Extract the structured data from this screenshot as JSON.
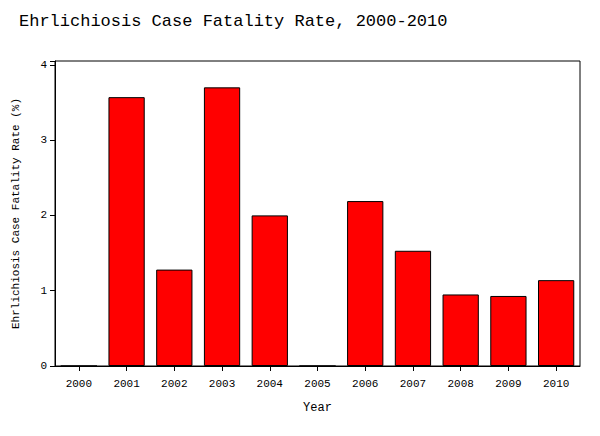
{
  "chart_data": {
    "type": "bar",
    "title": "Ehrlichiosis Case Fatality Rate, 2000-2010",
    "x_label": "Year",
    "y_label": "Ehrlichiosis Case Fatality Rate (%)",
    "categories": [
      "2000",
      "2001",
      "2002",
      "2003",
      "2004",
      "2005",
      "2006",
      "2007",
      "2008",
      "2009",
      "2010"
    ],
    "values": [
      0,
      3.57,
      1.28,
      3.7,
      2.0,
      0,
      2.19,
      1.53,
      0.95,
      0.93,
      1.14
    ],
    "color": "#ff0000",
    "ylim": [
      0,
      4.05
    ],
    "yticks": [
      0,
      1,
      2,
      3,
      4
    ],
    "grid": false,
    "data_labels": false
  }
}
